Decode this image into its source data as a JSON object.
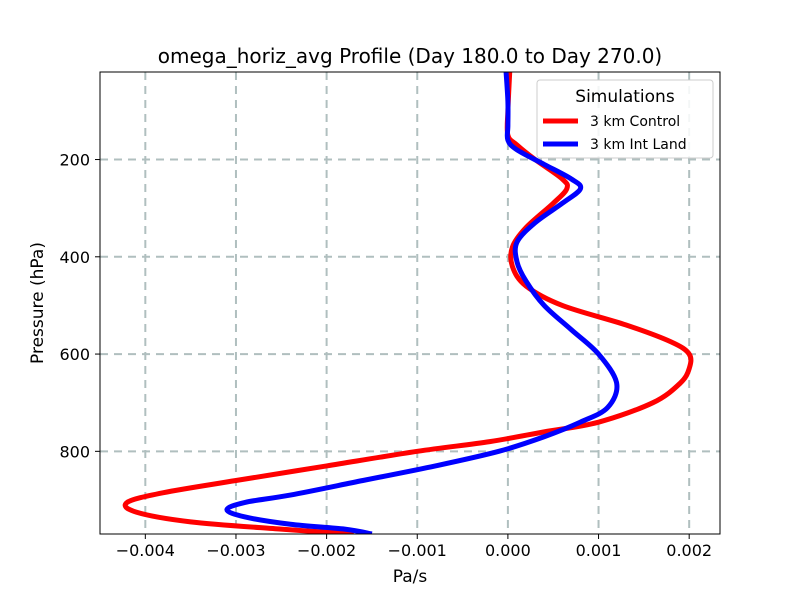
{
  "chart_data": {
    "type": "line",
    "title": "omega_horiz_avg Profile (Day 180.0 to Day 270.0)",
    "xlabel": "Pa/s",
    "ylabel": "Pressure (hPa)",
    "xlim": [
      -0.0045,
      0.00234
    ],
    "ylim": [
      970,
      20
    ],
    "y_inverted": true,
    "grid": true,
    "x_ticks": [
      -0.004,
      -0.003,
      -0.002,
      -0.001,
      0.0,
      0.001,
      0.002
    ],
    "x_tick_labels": [
      "−0.004",
      "−0.003",
      "−0.002",
      "−0.001",
      "0.000",
      "0.001",
      "0.002"
    ],
    "y_ticks": [
      200,
      400,
      600,
      800
    ],
    "y_tick_labels": [
      "200",
      "400",
      "600",
      "800"
    ],
    "legend": {
      "title": "Simulations",
      "position": "top-right"
    },
    "series": [
      {
        "name": "3 km Control",
        "color": "#ff0000",
        "points": [
          [
            2e-05,
            20
          ],
          [
            0.0,
            100
          ],
          [
            0.0,
            150
          ],
          [
            0.0001,
            170
          ],
          [
            0.0003,
            200
          ],
          [
            0.0006,
            240
          ],
          [
            0.00065,
            260
          ],
          [
            0.0005,
            290
          ],
          [
            0.0002,
            340
          ],
          [
            5e-05,
            380
          ],
          [
            5e-05,
            420
          ],
          [
            0.0002,
            460
          ],
          [
            0.0006,
            500
          ],
          [
            0.0013,
            540
          ],
          [
            0.0018,
            575
          ],
          [
            0.002,
            600
          ],
          [
            0.002,
            630
          ],
          [
            0.0019,
            660
          ],
          [
            0.0016,
            700
          ],
          [
            0.001,
            740
          ],
          [
            0.0004,
            760
          ],
          [
            -0.0002,
            780
          ],
          [
            -0.001,
            800
          ],
          [
            -0.002,
            830
          ],
          [
            -0.003,
            860
          ],
          [
            -0.0038,
            885
          ],
          [
            -0.0042,
            905
          ],
          [
            -0.0041,
            925
          ],
          [
            -0.0035,
            945
          ],
          [
            -0.0025,
            960
          ],
          [
            -0.0017,
            970
          ]
        ]
      },
      {
        "name": "3 km Int Land",
        "color": "#0000ff",
        "points": [
          [
            -2e-05,
            20
          ],
          [
            0.0,
            80
          ],
          [
            0.0,
            130
          ],
          [
            0.0,
            160
          ],
          [
            0.0001,
            180
          ],
          [
            0.0004,
            210
          ],
          [
            0.0007,
            240
          ],
          [
            0.0008,
            260
          ],
          [
            0.0006,
            290
          ],
          [
            0.0003,
            330
          ],
          [
            0.0001,
            370
          ],
          [
            0.0001,
            410
          ],
          [
            0.0002,
            450
          ],
          [
            0.0004,
            500
          ],
          [
            0.0007,
            550
          ],
          [
            0.001,
            600
          ],
          [
            0.0012,
            660
          ],
          [
            0.0011,
            710
          ],
          [
            0.0008,
            740
          ],
          [
            0.0004,
            770
          ],
          [
            -0.0001,
            800
          ],
          [
            -0.0008,
            830
          ],
          [
            -0.0016,
            860
          ],
          [
            -0.0024,
            890
          ],
          [
            -0.0029,
            905
          ],
          [
            -0.0031,
            920
          ],
          [
            -0.0029,
            935
          ],
          [
            -0.0024,
            950
          ],
          [
            -0.0018,
            960
          ],
          [
            -0.0015,
            970
          ]
        ]
      }
    ]
  }
}
